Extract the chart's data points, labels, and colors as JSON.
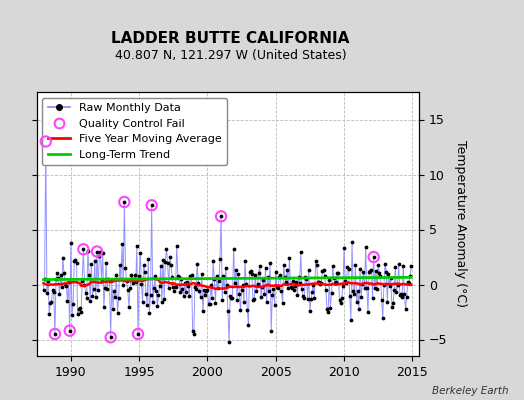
{
  "title": "LADDER BUTTE CALIFORNIA",
  "subtitle": "40.807 N, 121.297 W (United States)",
  "ylabel": "Temperature Anomaly (°C)",
  "credit": "Berkeley Earth",
  "xlim": [
    1987.5,
    2015.5
  ],
  "ylim": [
    -6.5,
    17.5
  ],
  "yticks": [
    -5,
    0,
    5,
    10,
    15
  ],
  "xticks": [
    1990,
    1995,
    2000,
    2005,
    2010,
    2015
  ],
  "bg_color": "#d8d8d8",
  "plot_bg_color": "#ffffff",
  "raw_color": "#8888ff",
  "raw_dot_color": "#000000",
  "ma_color": "#ff0000",
  "trend_color": "#00cc00",
  "qc_color": "#ff44ff",
  "grid_color": "#bbbbbb",
  "title_fontsize": 11,
  "subtitle_fontsize": 9,
  "legend_fontsize": 8,
  "start_year": 1988,
  "end_year": 2014
}
